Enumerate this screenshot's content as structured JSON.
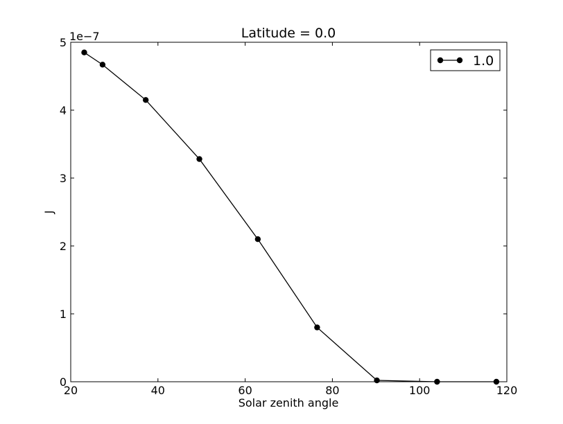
{
  "chart_data": {
    "type": "line",
    "title": "Latitude = 0.0",
    "xlabel": "Solar zenith angle",
    "ylabel": "J",
    "y_offset_label": "1e−7",
    "xlim": [
      20,
      120
    ],
    "ylim": [
      0,
      5
    ],
    "xticks": [
      20,
      40,
      60,
      80,
      100,
      120
    ],
    "yticks": [
      0,
      1,
      2,
      3,
      4,
      5
    ],
    "grid": false,
    "legend_position": "top-right",
    "series": [
      {
        "name": "1.0",
        "color": "#000000",
        "marker": "circle",
        "x": [
          23.1,
          27.3,
          37.2,
          49.5,
          62.9,
          76.5,
          90.2,
          104.0,
          117.6
        ],
        "y": [
          4.85,
          4.67,
          4.15,
          3.28,
          2.1,
          0.8,
          0.02,
          0.0,
          0.0
        ]
      }
    ]
  }
}
